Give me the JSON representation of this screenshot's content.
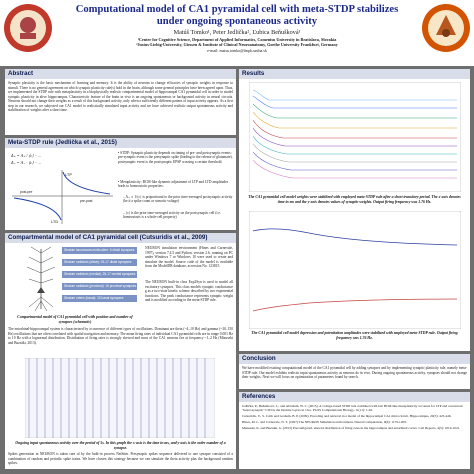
{
  "header": {
    "title_line1": "Computational model of CA1 pyramidal cell with meta-STDP stabilizes",
    "title_line2": "under ongoing  spontaneous activity",
    "authors": "Matúš Tomko¹, Peter Jedlička², Ľubica Beňušková¹",
    "affil1": "¹Center for Cognitive Science, Department of Applied Informatics, Comenius University in Bratislava, Slovakia",
    "affil2": "²Justus-Liebig-University, Giessen & Institute of Clinical Neuroanatomy, Goethe University Frankfurt, Germany",
    "email": "e-mail: matus.tomko@fmph.uniba.sk"
  },
  "abstract": {
    "heading": "Abstract",
    "text": "Synaptic plasticity is the basic mechanism of learning and memory. It is the ability of neurons to change efficacies of synaptic weights in response to stimuli. There is no general agreement on which synaptic plasticity rule(s) hold in the brain, although some general principles have been agreed upon. Thus, we implemented the STDP rule with metaplasticity in a biophysically realistic compartmental model of hippocampal CA1 pyramidal cell in order to model synaptic plasticity in alive hippocampus. Characteristic feature of the brain in vivo is an ongoing spontaneous or background activity in neural circuits. Neurons should not change their weights as a result of this background activity, only when a sufficiently different pattern of input activity appears. As a first step in our research, we subjected our CA1 model to realistically simulated input activity and we have achieved realistic output spontaneous activity and stabilization of weights after a short time."
  },
  "metastdp": {
    "heading": "Meta-STDP rule (Jedlička et al., 2015)",
    "eq1": "Δ₊ = A₊ / ⟨c⟩ ·· ...",
    "eq2": "Δ₋ = A₋ · ⟨c⟩ ·· ...",
    "bullet1": "STDP: Synaptic plasticity depends on timing of pre- and postsynaptic events: pre-synaptic event is the presynaptic spike (leading to the release of glutamate), postsynaptic event is the postsynaptic EPSP crossing a certain threshold.",
    "bullet2": "Metaplasticity: BCM-like dynamic adjustment of LTP and LTD amplitudes leads to homeostatic properties:",
    "sub1": "A₊ ∝ 1/⟨c⟩ is proportional to the prior time-averaged postsynaptic activity (be it a spike count or somatic voltage)",
    "sub2": "⟨c⟩ is the prior time-averaged activity on the postsynaptic cell (i.e. homeostasis is a whole-cell property)",
    "label_ltp": "LTP",
    "label_ltd": "LTD",
    "label_postpre": "post-pre",
    "label_prepost": "pre-post"
  },
  "compartmental": {
    "heading": "Compartmental model of CA1 pyramidal cell (Cutsuridis et al., 2009)",
    "boxes": [
      "Stratum lacunosum-moleculare: 6 distal synapses",
      "Stratum radiatum (distal): 25-17 distal synapses",
      "Stratum radiatum (medial): 25-17 medial synapses",
      "Stratum radiatum (proximal): 15 proximal synapses",
      "Stratum oriens (basal): 15 basal synapses"
    ],
    "neuron_text1": "NEURON simulation environment (Hines and Carnevale, 1997), version 7.4.5 and Python, version 2.6, running on PC under Windows 7 or Windows 10 were used to create and simulate the model. Source code of the model is available from the ModelDB database, accession No. 123815.",
    "neuron_text2": "The NEURON built-in class Exp2Syn is used to model all excitatory synapses. This class models synaptic conductance g as a two-state kinetic scheme described by two exponential functions. The peak conductance represents synaptic weight and is modified according to the meta-STDP rule.",
    "caption": "Compartmental model of CA1 pyramidal cell with position and number of synapses (schematic)",
    "body_text": "The entorhinal-hippocampal system is characterized by occurrence of different types of oscillations. Dominant are theta (~4–10 Hz) and gamma (~30–150 Hz) oscillations that are often correlated with spatial navigation and memory. The mean firing rates of individual CA1 pyramidal cells are in range 0.001 Hz to 10 Hz with a lognormal distribution. Distribution of firing rates is strongly skewed and most of the CA1 neurons fire at frequency ~1–2 Hz (Mizuseki and Buzsáki, 2013).",
    "trace_caption": "Ongoing input spontaneous activity over the period of 5s. In this graph the x-axis is the time in ms, and y-axis is the order number of a synapse.",
    "spikes_text": "Spikes generation in NEURON is taken care of by the built-in process NetStim. Presynaptic spikes sequence delivered to one synapse consisted of a combination of random and periodic spike trains. We have chosen this strategy because we can simulate the theta activity plus the background random spikes."
  },
  "results": {
    "heading": "Results",
    "caption1": "The CA1 pyramidal cell model weights were stabilized with employed meta-STDP rule after a short transitory period. The x-axis denotes time in ms and the y-axis denotes values of synaptic weights. Output firing frequency was 1.76 Hz.",
    "caption2": "The CA1 pyramidal cell model depression and potentiation amplitudes were stabilized with employed meta-STDP rule. Output firing frequency was 1.76 Hz."
  },
  "conclusion": {
    "heading": "Conclusion",
    "text": "We have modified existing computational model of the CA1 pyramidal cell by adding synapses and by implementing synaptic plasticity rule, namely meta-STDP rule. Our model exhibits realistic input spontaneous activity as neurons do in vivo. During ongoing spontaneous activity, synapses should not change their weights. Next we will focus on optimization of parameters found by search."
  },
  "references": {
    "heading": "References",
    "items": [
      "Jedlička, P., Beňušková, L., and Abraham, W. C. (2015). A voltage-based STDP rule combined with fast BCM-like metaplasticity accounts for LTP and concurrent \"heterosynaptic\" LTD in the Dentate Gyrus in vivo. PLOS Computational Biology, 11(11): 1-26.",
      "Cutsuridis, V., S. Cobb and Graham, B. P. (2009). Encoding and retrieval in a model of the hippocampal CA1 microcircuit. Hippocampus, 20(3): 423-446.",
      "Hines, M. L. and Carnevale, N. T. (1997) The NEURON Simulation environment. Neural Computation, 9(6): 1179-1209.",
      "Mizuseki, K. and Buzsáki, G. (2013) Preconfigured, skewed distribution of firing rates in the hippocampus and entorhinal cortex. Cell Reports, 4(5): 1010-1021."
    ]
  },
  "colors": {
    "title": "#1c2a8a",
    "panel_head": "#d8dde9",
    "background": "#6e6e6e",
    "logo_left": "#c0392b",
    "logo_right": "#d35400"
  }
}
